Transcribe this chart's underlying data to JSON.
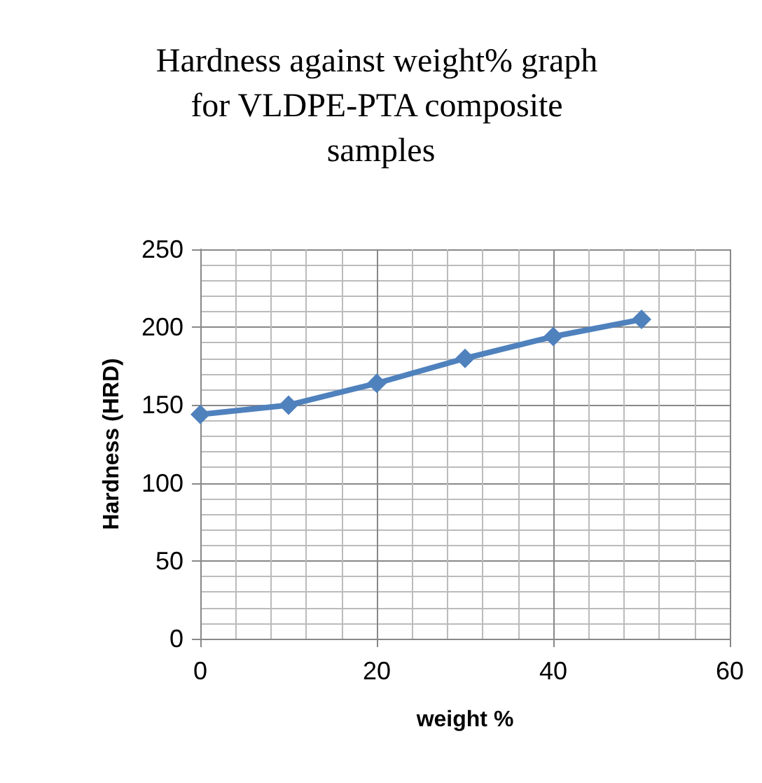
{
  "chart_data": {
    "type": "line",
    "title": "Hardness against weight% graph for VLDPE-PTA composite samples",
    "xlabel": "weight %",
    "ylabel": "Hardness (HRD)",
    "x": [
      0,
      10,
      20,
      30,
      40,
      50
    ],
    "series": [
      {
        "color": "#4f81bd",
        "values": [
          144,
          150,
          164,
          180,
          194,
          205
        ]
      }
    ],
    "xlim": [
      0,
      60
    ],
    "xticks": [
      0,
      20,
      40,
      60
    ],
    "ylim": [
      0,
      250
    ],
    "yticks": [
      0,
      50,
      100,
      150,
      200,
      250
    ],
    "grid": true,
    "marker": "diamond",
    "line_style": "solid"
  }
}
